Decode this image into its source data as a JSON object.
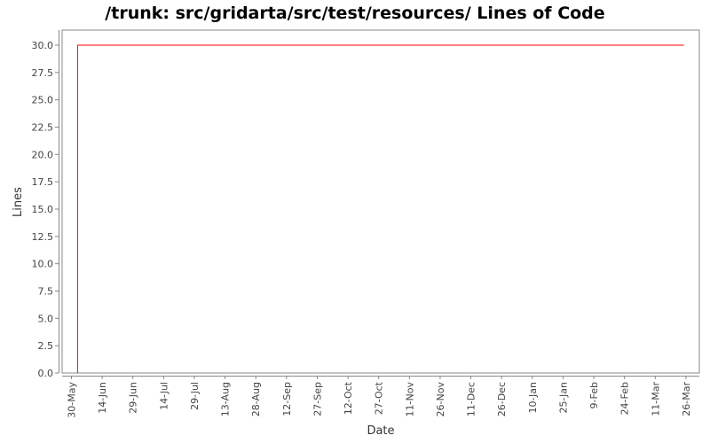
{
  "chart_data": {
    "type": "line",
    "title": "/trunk: src/gridarta/src/test/resources/ Lines of Code",
    "xlabel": "Date",
    "ylabel": "Lines",
    "ylim": [
      0,
      30
    ],
    "yticks": [
      "0.0",
      "2.5",
      "5.0",
      "7.5",
      "10.0",
      "12.5",
      "15.0",
      "17.5",
      "20.0",
      "22.5",
      "25.0",
      "27.5",
      "30.0"
    ],
    "xticks": [
      "30-May",
      "14-Jun",
      "29-Jun",
      "14-Jul",
      "29-Jul",
      "13-Aug",
      "28-Aug",
      "12-Sep",
      "27-Sep",
      "12-Oct",
      "27-Oct",
      "11-Nov",
      "26-Nov",
      "11-Dec",
      "26-Dec",
      "10-Jan",
      "25-Jan",
      "9-Feb",
      "24-Feb",
      "11-Mar",
      "26-Mar"
    ],
    "grid": false,
    "series": [
      {
        "color": "#ff0000",
        "points": [
          {
            "x": "2-Jun",
            "y": 0
          },
          {
            "x": "2-Jun",
            "y": 30
          },
          {
            "x": "25-Mar",
            "y": 30
          }
        ]
      }
    ]
  }
}
